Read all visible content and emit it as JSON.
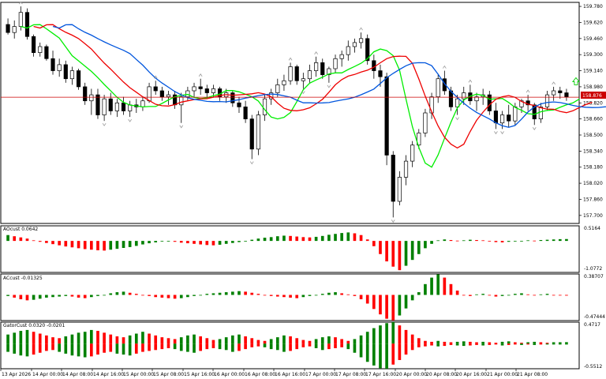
{
  "colors": {
    "bull": "#ffffff",
    "bear": "#000000",
    "up_bar": "#008000",
    "down_bar": "#ff0000",
    "ma_green": "#00ee00",
    "ma_red": "#ee0000",
    "ma_blue": "#0055dd",
    "price_line": "#cc0000",
    "price_label_bg": "#cc0000",
    "fractal": "#999999",
    "arrow_up": "#00cc00"
  },
  "main": {
    "price_label": "158.876",
    "price_value": 158.876,
    "ticks": [
      "159.780",
      "159.620",
      "159.460",
      "159.300",
      "159.140",
      "158.980",
      "158.820",
      "158.660",
      "158.500",
      "158.340",
      "158.180",
      "158.020",
      "157.860",
      "157.700"
    ],
    "ylim": [
      157.62,
      159.82
    ]
  },
  "indicators": [
    {
      "label": "AOcust 0.0642",
      "top_tick": "0.5164",
      "bottom_tick": "-1.0772",
      "ylim": [
        -1.0772,
        0.5164
      ]
    },
    {
      "label": "ACcust -0.01325",
      "top_tick": "0.38707",
      "bottom_tick": "-0.47444",
      "ylim": [
        -0.47444,
        0.38707
      ]
    },
    {
      "label": "GatorCust 0.0320 -0.0201",
      "top_tick": "0.4717",
      "bottom_tick": "-0.5512",
      "ylim": [
        -0.5512,
        0.4717
      ]
    }
  ],
  "xaxis": [
    "13 Apr 2026",
    "14 Apr 00:00",
    "14 Apr 08:00",
    "14 Apr 16:00",
    "15 Apr 00:00",
    "15 Apr 08:00",
    "15 Apr 16:00",
    "16 Apr 00:00",
    "16 Apr 08:00",
    "16 Apr 16:00",
    "17 Apr 00:00",
    "17 Apr 08:00",
    "17 Apr 16:00",
    "20 Apr 00:00",
    "20 Apr 08:00",
    "20 Apr 16:00",
    "21 Apr 00:00",
    "21 Apr 08:00"
  ],
  "chart_data": {
    "type": "candlestick",
    "candles": [
      [
        159.6,
        159.66,
        159.5,
        159.52
      ],
      [
        159.52,
        159.64,
        159.46,
        159.58
      ],
      [
        159.58,
        159.78,
        159.54,
        159.72
      ],
      [
        159.72,
        159.76,
        159.45,
        159.48
      ],
      [
        159.48,
        159.5,
        159.28,
        159.32
      ],
      [
        159.32,
        159.42,
        159.28,
        159.38
      ],
      [
        159.38,
        159.4,
        159.24,
        159.26
      ],
      [
        159.26,
        159.34,
        159.1,
        159.14
      ],
      [
        159.14,
        159.26,
        159.08,
        159.2
      ],
      [
        159.2,
        159.24,
        159.02,
        159.06
      ],
      [
        159.06,
        159.18,
        159.0,
        159.14
      ],
      [
        159.14,
        159.16,
        158.95,
        158.98
      ],
      [
        158.98,
        159.02,
        158.8,
        158.84
      ],
      [
        158.84,
        158.96,
        158.7,
        158.9
      ],
      [
        158.9,
        158.96,
        158.66,
        158.7
      ],
      [
        158.7,
        158.9,
        158.64,
        158.86
      ],
      [
        158.86,
        158.92,
        158.7,
        158.74
      ],
      [
        158.74,
        158.86,
        158.68,
        158.82
      ],
      [
        158.82,
        158.88,
        158.7,
        158.74
      ],
      [
        158.74,
        158.84,
        158.68,
        158.8
      ],
      [
        158.8,
        158.86,
        158.72,
        158.78
      ],
      [
        158.78,
        158.88,
        158.74,
        158.84
      ],
      [
        158.84,
        159.02,
        158.82,
        158.98
      ],
      [
        158.98,
        159.04,
        158.9,
        158.94
      ],
      [
        158.94,
        158.98,
        158.84,
        158.88
      ],
      [
        158.88,
        158.94,
        158.8,
        158.9
      ],
      [
        158.9,
        158.94,
        158.76,
        158.8
      ],
      [
        158.8,
        158.92,
        158.62,
        158.88
      ],
      [
        158.88,
        158.98,
        158.84,
        158.94
      ],
      [
        158.94,
        159.02,
        158.88,
        158.98
      ],
      [
        158.98,
        159.06,
        158.9,
        158.96
      ],
      [
        158.96,
        159.0,
        158.86,
        158.92
      ],
      [
        158.92,
        159.0,
        158.88,
        158.96
      ],
      [
        158.96,
        158.98,
        158.84,
        158.88
      ],
      [
        158.88,
        158.96,
        158.82,
        158.92
      ],
      [
        158.92,
        158.94,
        158.78,
        158.82
      ],
      [
        158.82,
        158.88,
        158.72,
        158.78
      ],
      [
        158.78,
        158.84,
        158.62,
        158.66
      ],
      [
        158.66,
        158.7,
        158.26,
        158.36
      ],
      [
        158.36,
        158.74,
        158.3,
        158.7
      ],
      [
        158.7,
        158.9,
        158.64,
        158.86
      ],
      [
        158.86,
        158.96,
        158.8,
        158.92
      ],
      [
        158.92,
        159.06,
        158.88,
        159.0
      ],
      [
        159.0,
        159.1,
        158.94,
        159.04
      ],
      [
        159.04,
        159.22,
        159.0,
        159.18
      ],
      [
        159.18,
        159.2,
        159.0,
        159.04
      ],
      [
        159.04,
        159.12,
        158.96,
        159.06
      ],
      [
        159.06,
        159.2,
        159.02,
        159.14
      ],
      [
        159.14,
        159.28,
        159.08,
        159.22
      ],
      [
        159.22,
        159.26,
        159.06,
        159.1
      ],
      [
        159.1,
        159.18,
        159.02,
        159.16
      ],
      [
        159.16,
        159.3,
        159.12,
        159.26
      ],
      [
        159.26,
        159.34,
        159.18,
        159.3
      ],
      [
        159.3,
        159.44,
        159.24,
        159.38
      ],
      [
        159.38,
        159.46,
        159.32,
        159.42
      ],
      [
        159.42,
        159.52,
        159.36,
        159.46
      ],
      [
        159.46,
        159.5,
        159.2,
        159.24
      ],
      [
        159.24,
        159.3,
        159.06,
        159.14
      ],
      [
        159.14,
        159.2,
        158.98,
        159.08
      ],
      [
        159.08,
        159.12,
        158.2,
        158.3
      ],
      [
        158.3,
        158.34,
        157.68,
        157.84
      ],
      [
        157.84,
        158.14,
        157.8,
        158.08
      ],
      [
        158.08,
        158.3,
        158.0,
        158.24
      ],
      [
        158.24,
        158.44,
        158.18,
        158.4
      ],
      [
        158.4,
        158.56,
        158.36,
        158.52
      ],
      [
        158.52,
        158.76,
        158.48,
        158.72
      ],
      [
        158.72,
        158.92,
        158.66,
        158.88
      ],
      [
        158.88,
        159.1,
        158.82,
        159.06
      ],
      [
        159.06,
        159.14,
        158.9,
        158.94
      ],
      [
        158.94,
        158.98,
        158.74,
        158.78
      ],
      [
        158.78,
        158.9,
        158.7,
        158.86
      ],
      [
        158.86,
        158.98,
        158.8,
        158.92
      ],
      [
        158.92,
        159.0,
        158.8,
        158.84
      ],
      [
        158.84,
        158.92,
        158.74,
        158.88
      ],
      [
        158.88,
        158.96,
        158.8,
        158.9
      ],
      [
        158.9,
        158.94,
        158.7,
        158.74
      ],
      [
        158.74,
        158.82,
        158.56,
        158.62
      ],
      [
        158.62,
        158.74,
        158.56,
        158.7
      ],
      [
        158.7,
        158.8,
        158.58,
        158.64
      ],
      [
        158.64,
        158.82,
        158.6,
        158.78
      ],
      [
        158.78,
        158.86,
        158.72,
        158.84
      ],
      [
        158.84,
        158.9,
        158.74,
        158.8
      ],
      [
        158.8,
        158.82,
        158.6,
        158.66
      ],
      [
        158.66,
        158.82,
        158.62,
        158.78
      ],
      [
        158.78,
        158.94,
        158.74,
        158.9
      ],
      [
        158.9,
        158.98,
        158.84,
        158.94
      ],
      [
        158.94,
        158.98,
        158.86,
        158.92
      ],
      [
        158.92,
        158.96,
        158.84,
        158.88
      ]
    ],
    "ao": [
      0.2,
      0.16,
      0.12,
      0.08,
      0.02,
      -0.03,
      -0.07,
      -0.11,
      -0.15,
      -0.19,
      -0.22,
      -0.25,
      -0.28,
      -0.3,
      -0.32,
      -0.33,
      -0.3,
      -0.27,
      -0.24,
      -0.21,
      -0.17,
      -0.12,
      -0.08,
      -0.05,
      -0.02,
      0.0,
      -0.03,
      -0.06,
      -0.08,
      -0.1,
      -0.12,
      -0.14,
      -0.15,
      -0.13,
      -0.1,
      -0.07,
      -0.04,
      0.0,
      0.04,
      0.08,
      0.11,
      0.13,
      0.16,
      0.18,
      0.17,
      0.15,
      0.13,
      0.12,
      0.14,
      0.17,
      0.21,
      0.24,
      0.27,
      0.29,
      0.26,
      0.2,
      0.05,
      -0.18,
      -0.45,
      -0.7,
      -0.88,
      -1.0,
      -0.85,
      -0.65,
      -0.45,
      -0.25,
      -0.1,
      0.02,
      0.05,
      0.03,
      0.01,
      0.02,
      0.04,
      0.03,
      0.02,
      -0.01,
      -0.04,
      -0.05,
      -0.03,
      -0.01,
      0.0,
      0.02,
      0.01,
      0.03,
      0.04,
      0.05,
      0.06,
      0.064
    ],
    "ac": [
      -0.02,
      -0.05,
      -0.08,
      -0.1,
      -0.09,
      -0.07,
      -0.05,
      -0.04,
      -0.03,
      -0.02,
      -0.03,
      -0.05,
      -0.06,
      -0.04,
      -0.02,
      0.0,
      0.03,
      0.05,
      0.06,
      0.04,
      0.02,
      0.0,
      -0.02,
      -0.04,
      -0.05,
      -0.06,
      -0.07,
      -0.06,
      -0.04,
      -0.02,
      0.0,
      0.02,
      0.03,
      0.04,
      0.05,
      0.06,
      0.07,
      0.06,
      0.04,
      0.02,
      0.0,
      -0.02,
      -0.03,
      -0.04,
      -0.05,
      -0.06,
      -0.04,
      -0.02,
      0.0,
      0.02,
      0.04,
      0.05,
      0.03,
      0.01,
      -0.02,
      -0.08,
      -0.16,
      -0.26,
      -0.36,
      -0.44,
      -0.47,
      -0.38,
      -0.25,
      -0.1,
      0.05,
      0.2,
      0.32,
      0.38,
      0.32,
      0.2,
      0.08,
      0.0,
      -0.02,
      0.01,
      0.02,
      -0.01,
      -0.03,
      -0.02,
      0.0,
      0.02,
      0.03,
      0.01,
      -0.01,
      0.01,
      0.02,
      0.0,
      -0.01,
      -0.013
    ],
    "gator_up": [
      0.2,
      0.24,
      0.28,
      0.3,
      0.26,
      0.22,
      0.18,
      0.14,
      0.12,
      0.16,
      0.2,
      0.24,
      0.26,
      0.3,
      0.28,
      0.24,
      0.2,
      0.16,
      0.14,
      0.18,
      0.22,
      0.26,
      0.22,
      0.18,
      0.14,
      0.12,
      0.1,
      0.14,
      0.18,
      0.2,
      0.16,
      0.12,
      0.08,
      0.1,
      0.14,
      0.18,
      0.2,
      0.16,
      0.12,
      0.08,
      0.06,
      0.1,
      0.14,
      0.18,
      0.16,
      0.12,
      0.08,
      0.06,
      0.1,
      0.14,
      0.16,
      0.14,
      0.1,
      0.06,
      0.1,
      0.18,
      0.26,
      0.34,
      0.4,
      0.45,
      0.47,
      0.4,
      0.3,
      0.2,
      0.12,
      0.06,
      0.04,
      0.06,
      0.04,
      0.03,
      0.04,
      0.05,
      0.04,
      0.03,
      0.04,
      0.03,
      0.02,
      0.04,
      0.05,
      0.03,
      0.02,
      0.03,
      0.04,
      0.03,
      0.02,
      0.03,
      0.03,
      0.032
    ],
    "gator_down": [
      -0.18,
      -0.22,
      -0.26,
      -0.28,
      -0.24,
      -0.2,
      -0.16,
      -0.14,
      -0.18,
      -0.22,
      -0.26,
      -0.28,
      -0.3,
      -0.28,
      -0.24,
      -0.2,
      -0.18,
      -0.22,
      -0.24,
      -0.26,
      -0.22,
      -0.18,
      -0.16,
      -0.14,
      -0.12,
      -0.1,
      -0.12,
      -0.16,
      -0.18,
      -0.2,
      -0.16,
      -0.12,
      -0.1,
      -0.12,
      -0.14,
      -0.18,
      -0.16,
      -0.12,
      -0.08,
      -0.06,
      -0.08,
      -0.12,
      -0.14,
      -0.18,
      -0.16,
      -0.12,
      -0.08,
      -0.06,
      -0.1,
      -0.14,
      -0.12,
      -0.1,
      -0.08,
      -0.12,
      -0.2,
      -0.3,
      -0.4,
      -0.48,
      -0.54,
      -0.55,
      -0.46,
      -0.36,
      -0.24,
      -0.14,
      -0.08,
      -0.06,
      -0.04,
      -0.06,
      -0.05,
      -0.03,
      -0.04,
      -0.05,
      -0.04,
      -0.03,
      -0.04,
      -0.03,
      -0.02,
      -0.04,
      -0.03,
      -0.02,
      -0.03,
      -0.02,
      -0.03,
      -0.02,
      -0.02,
      -0.02,
      -0.02,
      -0.02
    ]
  }
}
